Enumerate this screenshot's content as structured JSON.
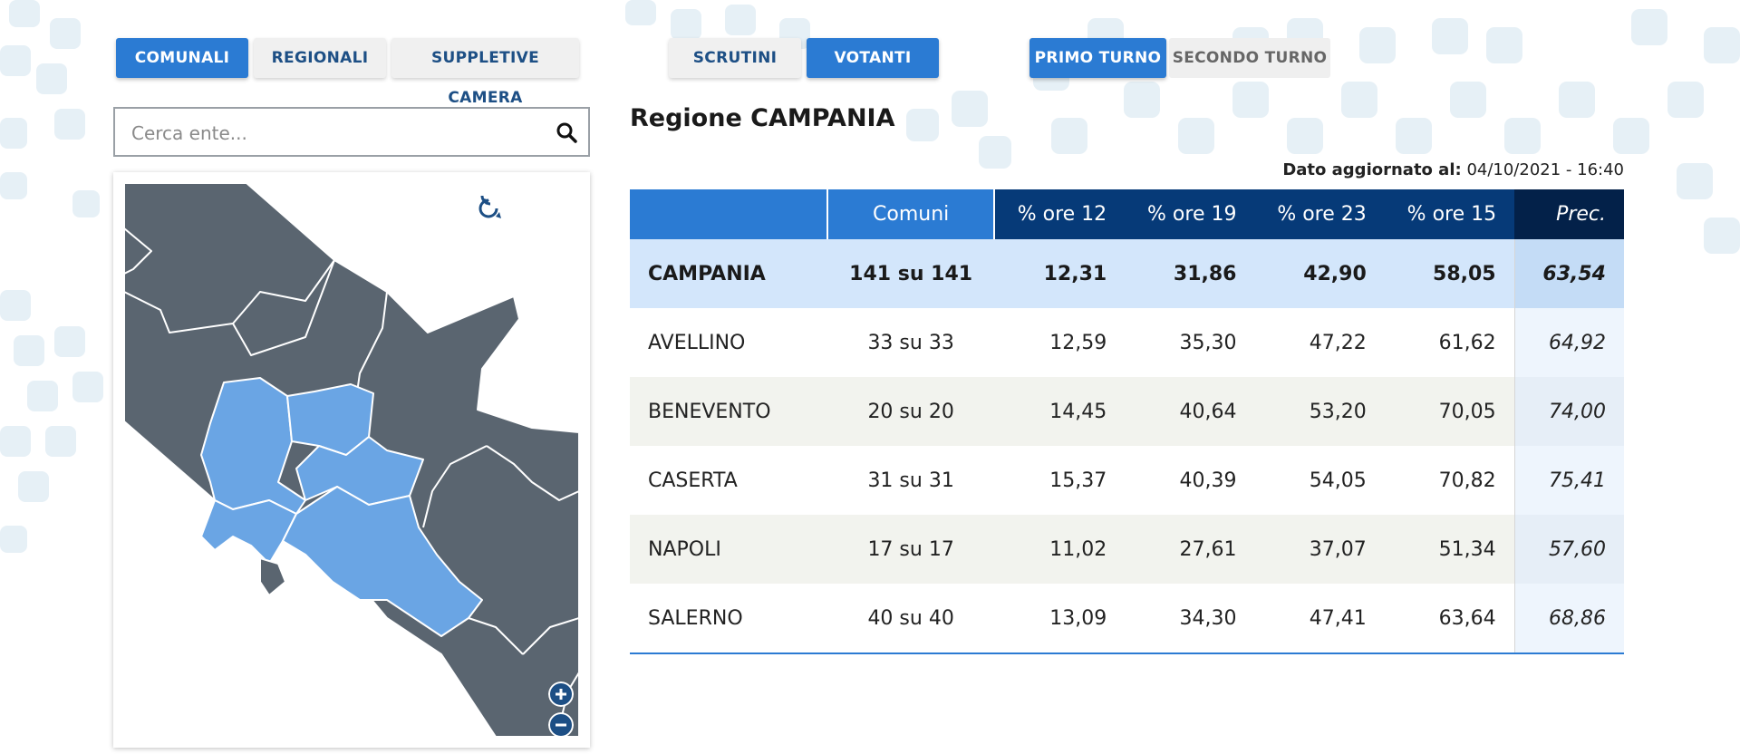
{
  "tabs_type": [
    {
      "label": "COMUNALI",
      "active": true
    },
    {
      "label": "REGIONALI",
      "active": false
    },
    {
      "label": "SUPPLETIVE CAMERA",
      "active": false
    }
  ],
  "tabs_view": [
    {
      "label": "SCRUTINI",
      "active": false
    },
    {
      "label": "VOTANTI",
      "active": true
    }
  ],
  "tabs_turno": [
    {
      "label": "PRIMO TURNO",
      "active": true
    },
    {
      "label": "SECONDO TURNO",
      "active": false
    }
  ],
  "search": {
    "placeholder": "Cerca ente..."
  },
  "map": {
    "highlighted_color": "#6aa5e4",
    "base_color": "#5a6570"
  },
  "region_title": "Regione CAMPANIA",
  "updated": {
    "label": "Dato aggiornato al:",
    "value": "04/10/2021 - 16:40"
  },
  "table": {
    "headers": [
      "",
      "Comuni",
      "% ore 12",
      "% ore 19",
      "% ore 23",
      "% ore 15",
      "Prec."
    ],
    "total": {
      "name": "CAMPANIA",
      "comuni": "141 su 141",
      "h12": "12,31",
      "h19": "31,86",
      "h23": "42,90",
      "h15": "58,05",
      "prec": "63,54"
    },
    "rows": [
      {
        "name": "AVELLINO",
        "comuni": "33 su 33",
        "h12": "12,59",
        "h19": "35,30",
        "h23": "47,22",
        "h15": "61,62",
        "prec": "64,92"
      },
      {
        "name": "BENEVENTO",
        "comuni": "20 su 20",
        "h12": "14,45",
        "h19": "40,64",
        "h23": "53,20",
        "h15": "70,05",
        "prec": "74,00"
      },
      {
        "name": "CASERTA",
        "comuni": "31 su 31",
        "h12": "15,37",
        "h19": "40,39",
        "h23": "54,05",
        "h15": "70,82",
        "prec": "75,41"
      },
      {
        "name": "NAPOLI",
        "comuni": "17 su 17",
        "h12": "11,02",
        "h19": "27,61",
        "h23": "37,07",
        "h15": "51,34",
        "prec": "57,60"
      },
      {
        "name": "SALERNO",
        "comuni": "40 su 40",
        "h12": "13,09",
        "h19": "34,30",
        "h23": "47,41",
        "h15": "63,64",
        "prec": "68,86"
      }
    ]
  }
}
